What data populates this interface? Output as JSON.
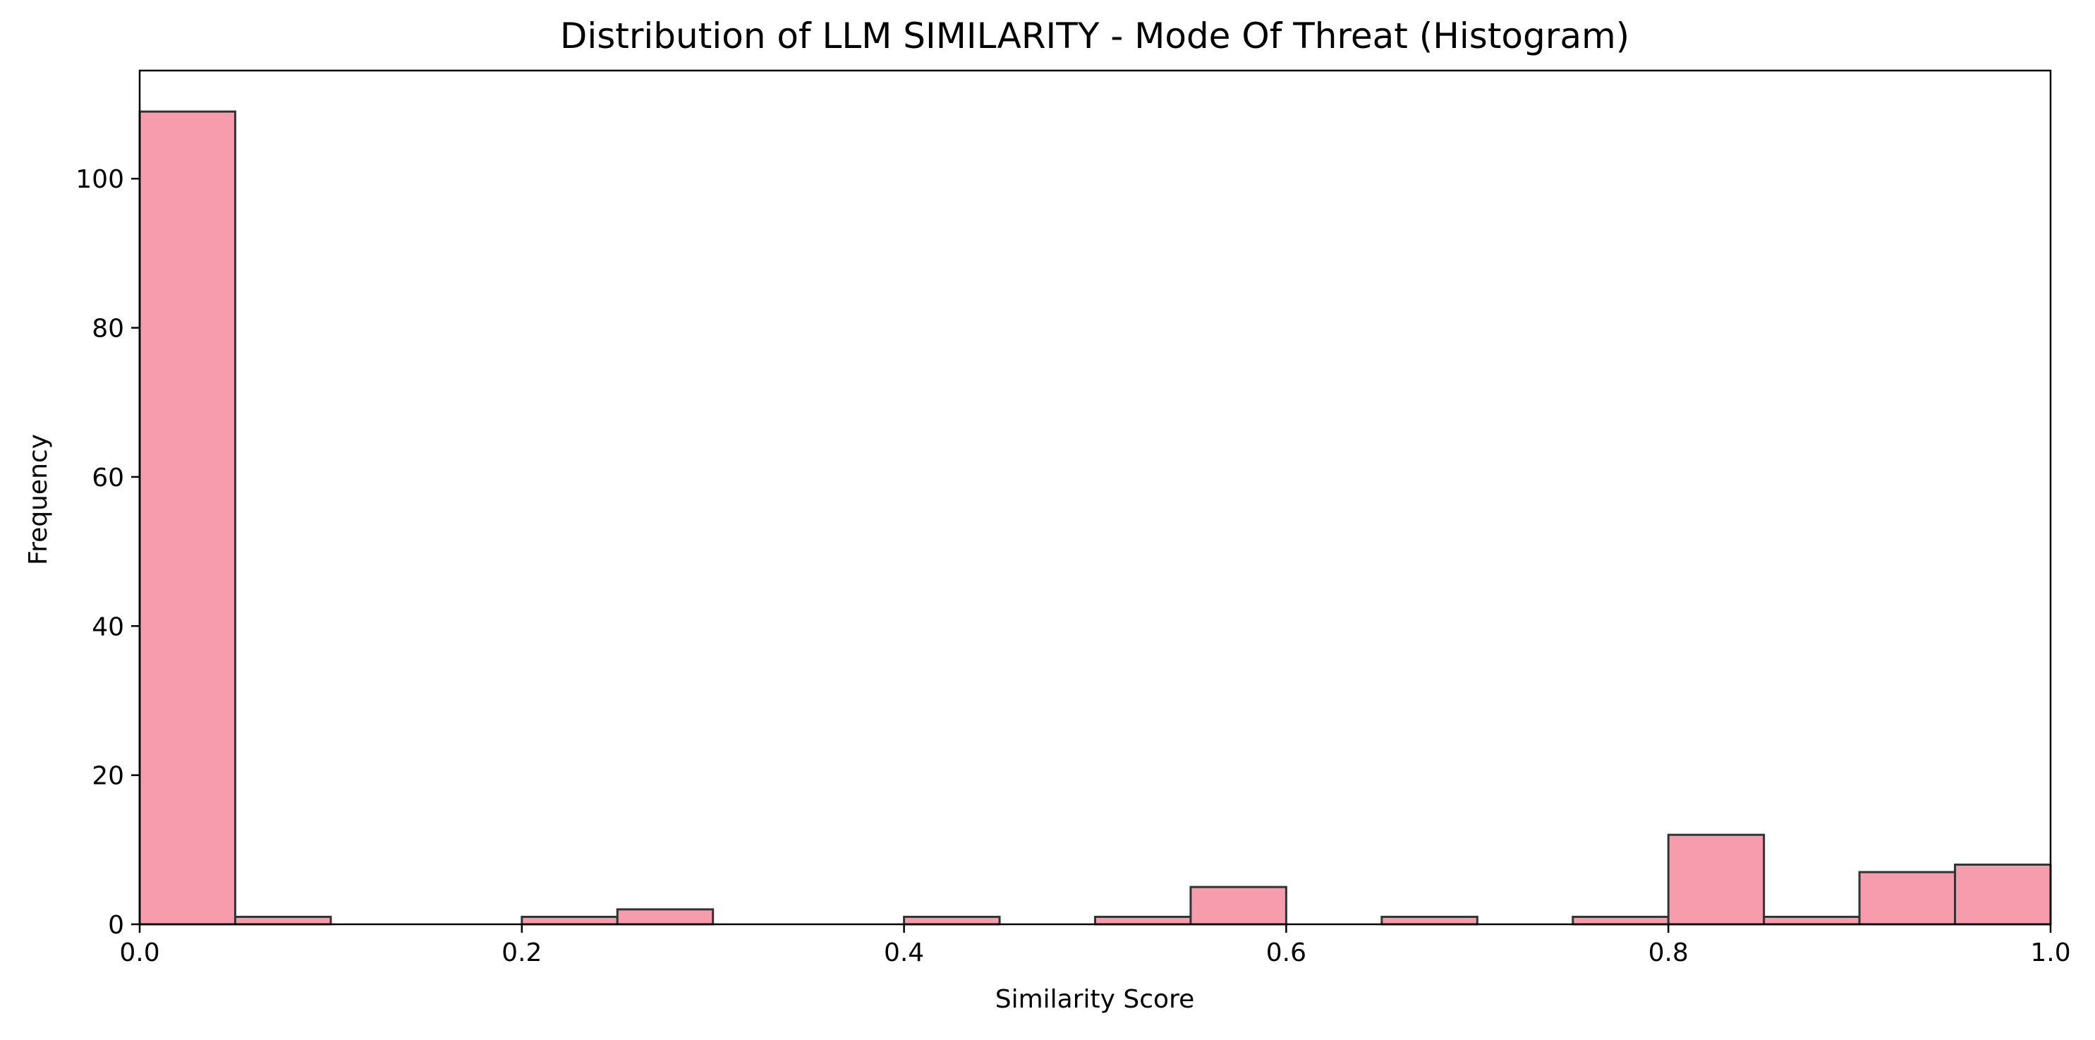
{
  "chart_data": {
    "type": "bar",
    "subtype": "histogram",
    "title": "Distribution of LLM SIMILARITY - Mode Of Threat (Histogram)",
    "xlabel": "Similarity Score",
    "ylabel": "Frequency",
    "xlim": [
      0.0,
      1.0
    ],
    "ylim": [
      0,
      114.5
    ],
    "xticks": [
      0.0,
      0.2,
      0.4,
      0.6,
      0.8,
      1.0
    ],
    "xtick_labels": [
      "0.0",
      "0.2",
      "0.4",
      "0.6",
      "0.8",
      "1.0"
    ],
    "yticks": [
      0,
      20,
      40,
      60,
      80,
      100
    ],
    "ytick_labels": [
      "0",
      "20",
      "40",
      "60",
      "80",
      "100"
    ],
    "bin_edges": [
      0.0,
      0.05,
      0.1,
      0.15,
      0.2,
      0.25,
      0.3,
      0.35,
      0.4,
      0.45,
      0.5,
      0.55,
      0.6,
      0.65,
      0.7,
      0.75,
      0.8,
      0.85,
      0.9,
      0.95,
      1.0
    ],
    "values": [
      109,
      1,
      0,
      0,
      1,
      2,
      0,
      0,
      1,
      0,
      1,
      5,
      0,
      1,
      0,
      1,
      12,
      1,
      7,
      8
    ],
    "bar_color": "#f79cad",
    "edge_color": "#333333",
    "grid": false,
    "legend": false
  }
}
